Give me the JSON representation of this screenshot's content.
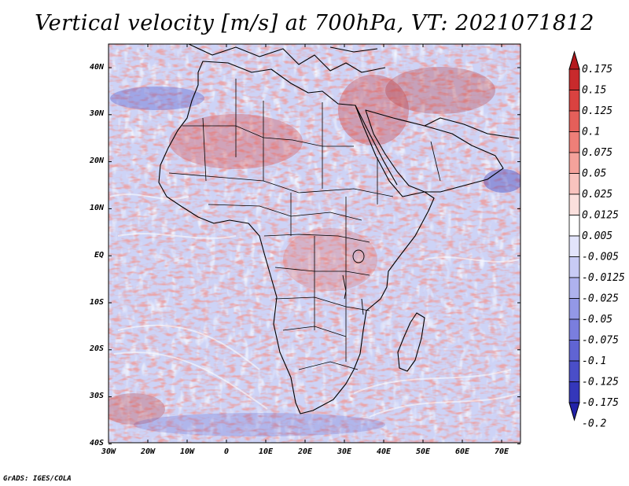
{
  "title": "Vertical velocity [m/s] at 700hPa, VT: 2021071812",
  "credit": "GrADS: IGES/COLA",
  "map": {
    "region": "Africa",
    "lon_range": [
      -30,
      75
    ],
    "lat_range": [
      -40,
      45
    ],
    "lat_ticks": [
      "40N",
      "30N",
      "20N",
      "10N",
      "EQ",
      "10S",
      "20S",
      "30S",
      "40S"
    ],
    "lon_ticks": [
      "30W",
      "20W",
      "10W",
      "0",
      "10E",
      "20E",
      "30E",
      "40E",
      "50E",
      "60E",
      "70E"
    ],
    "colors": {
      "background": "#cdd3f6",
      "land_outline": "#000000",
      "ocean_streak": "#ffffff"
    }
  },
  "colorbar": {
    "labels": [
      "0.175",
      "0.15",
      "0.125",
      "0.1",
      "0.075",
      "0.05",
      "0.025",
      "0.0125",
      "0.005",
      "-0.005",
      "-0.0125",
      "-0.025",
      "-0.05",
      "-0.075",
      "-0.1",
      "-0.125",
      "-0.175",
      "-0.2"
    ],
    "colors": [
      "#b5191d",
      "#c82a2c",
      "#d94240",
      "#e55f5a",
      "#ee7f78",
      "#f4a29b",
      "#f8c3be",
      "#fbe0dd",
      "#ffffff",
      "#e2e4fb",
      "#c8cbf5",
      "#aeb2ee",
      "#9398e6",
      "#7a7ede",
      "#6064d3",
      "#4a4ec8",
      "#3437ba",
      "#2222a8"
    ]
  }
}
